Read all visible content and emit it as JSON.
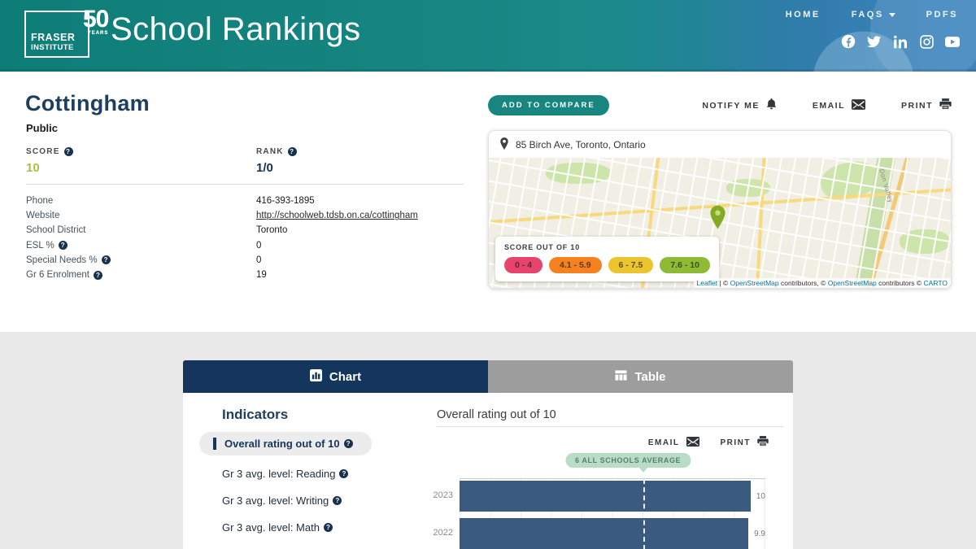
{
  "header": {
    "logo": {
      "line1": "FRASER",
      "line2": "INSTITUTE",
      "badge": "50",
      "badge_sub": "YEARS"
    },
    "title": "School Rankings",
    "nav": {
      "home": "HOME",
      "faqs": "FAQS",
      "pdfs": "PDFS"
    }
  },
  "school": {
    "name": "Cottingham",
    "type": "Public",
    "score_label": "SCORE",
    "score": "10",
    "rank_label": "RANK",
    "rank": "1/0",
    "details": [
      {
        "label": "Phone",
        "value": "416-393-1895"
      },
      {
        "label": "Website",
        "value": "http://schoolweb.tdsb.on.ca/cottingham"
      },
      {
        "label": "School District",
        "value": "Toronto"
      },
      {
        "label": "ESL %",
        "value": "0"
      },
      {
        "label": "Special Needs %",
        "value": "0"
      },
      {
        "label": "Gr 6 Enrolment",
        "value": "19"
      }
    ]
  },
  "actions": {
    "add_to_compare": "ADD TO COMPARE",
    "notify_me": "NOTIFY ME",
    "email": "EMAIL",
    "print": "PRINT"
  },
  "map": {
    "address": "85 Birch Ave, Toronto, Ontario",
    "legend_title": "SCORE OUT OF 10",
    "legend": [
      {
        "label": "0 - 4",
        "color": "#e8436d"
      },
      {
        "label": "4.1 - 5.9",
        "color": "#f5821f"
      },
      {
        "label": "6 - 7.5",
        "color": "#ecc52e"
      },
      {
        "label": "7.6 - 10",
        "color": "#8fba35"
      }
    ],
    "road_label": "Don Valley",
    "attribution": {
      "t1": "Leaflet",
      "t2": " | © ",
      "t3": "OpenStreetMap",
      "t4": " contributors, © ",
      "t5": "OpenStreetMap",
      "t6": " contributors © ",
      "t7": "CARTO"
    }
  },
  "tabs": [
    {
      "label": "Chart",
      "active": true
    },
    {
      "label": "Table",
      "active": false
    }
  ],
  "indicators": {
    "title": "Indicators",
    "items": [
      {
        "label": "Overall rating out of 10",
        "selected": true
      },
      {
        "label": "Gr 3 avg. level: Reading",
        "selected": false
      },
      {
        "label": "Gr 3 avg. level: Writing",
        "selected": false
      },
      {
        "label": "Gr 3 avg. level: Math",
        "selected": false
      }
    ]
  },
  "chart_panel": {
    "title": "Overall rating out of 10",
    "email": "EMAIL",
    "print": "PRINT"
  },
  "chart_data": {
    "type": "bar",
    "orientation": "horizontal",
    "title": "Overall rating out of 10",
    "categories": [
      "2023",
      "2022"
    ],
    "values": [
      10,
      9.9
    ],
    "xlim": [
      0,
      10
    ],
    "grid": true,
    "bar_color": "#3a5a80",
    "average_line": {
      "value": 6,
      "label": "6 ALL SCHOOLS AVERAGE"
    }
  },
  "colors": {
    "header_teal": "#178581",
    "navy": "#14365c",
    "score_green": "#a4c43c",
    "callout_green": "#b9dcc6",
    "inactive_tab_gray": "#9d9d9d"
  }
}
